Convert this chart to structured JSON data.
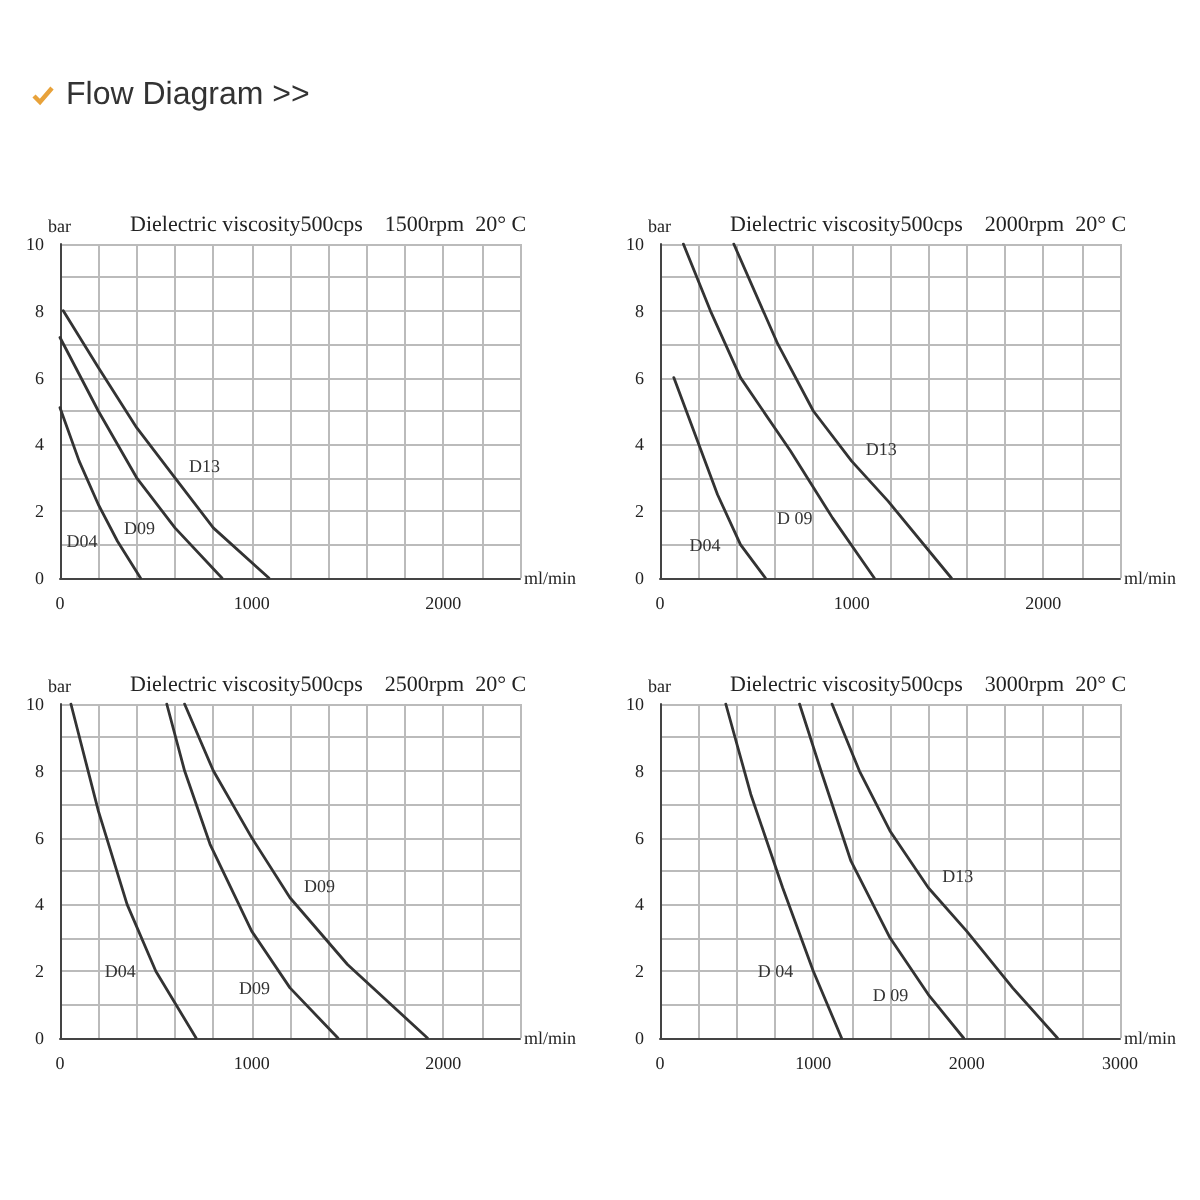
{
  "chart_data": [
    {
      "type": "line",
      "title": "Dielectric viscosity500cps    1500rpm  20° C",
      "xlabel": "ml/min",
      "ylabel": "bar",
      "annotations": [
        "Flow Diagram >>"
      ],
      "grid": true,
      "legend": false,
      "marker": "none",
      "line_style": "solid",
      "xlim": [
        0,
        2400
      ],
      "xticks": [
        0,
        {
          "value": 200,
          "label": null
        },
        {
          "value": 400,
          "label": null
        },
        {
          "value": 600,
          "label": null
        },
        {
          "value": 800,
          "label": null
        },
        1000,
        {
          "value": 1200,
          "label": null
        },
        {
          "value": 1400,
          "label": null
        },
        {
          "value": 1600,
          "label": null
        },
        {
          "value": 1800,
          "label": null
        },
        2000,
        {
          "value": 2200,
          "label": null
        },
        {
          "value": 2400,
          "label": null
        }
      ],
      "ylim": [
        0,
        10
      ],
      "yticks": [
        0,
        {
          "value": 1,
          "label": null
        },
        2,
        {
          "value": 3,
          "label": null
        },
        4,
        {
          "value": 5,
          "label": null
        },
        6,
        {
          "value": 7,
          "label": null
        },
        8,
        {
          "value": 9,
          "label": null
        },
        10
      ],
      "series": [
        {
          "name": "D04",
          "color": "#333333",
          "x": [
            0,
            100,
            200,
            300,
            420
          ],
          "values": [
            5.1,
            3.5,
            2.2,
            1.1,
            0
          ]
        },
        {
          "name": "D09",
          "color": "#333333",
          "x": [
            0,
            200,
            400,
            600,
            845
          ],
          "values": [
            7.2,
            5.0,
            3.0,
            1.5,
            0
          ]
        },
        {
          "name": "D13",
          "color": "#333333",
          "x": [
            17,
            200,
            400,
            600,
            800,
            1090
          ],
          "values": [
            8.0,
            6.3,
            4.5,
            3.0,
            1.5,
            0
          ]
        }
      ]
    },
    {
      "type": "line",
      "title": "Dielectric viscosity500cps    2000rpm  20° C",
      "xlabel": "ml/min",
      "ylabel": "bar",
      "grid": true,
      "legend": false,
      "marker": "none",
      "line_style": "solid",
      "xlim": [
        0,
        2400
      ],
      "xticks": [
        0,
        {
          "value": 200,
          "label": null
        },
        {
          "value": 400,
          "label": null
        },
        {
          "value": 600,
          "label": null
        },
        {
          "value": 800,
          "label": null
        },
        1000,
        {
          "value": 1200,
          "label": null
        },
        {
          "value": 1400,
          "label": null
        },
        {
          "value": 1600,
          "label": null
        },
        {
          "value": 1800,
          "label": null
        },
        2000,
        {
          "value": 2200,
          "label": null
        },
        {
          "value": 2400,
          "label": null
        }
      ],
      "ylim": [
        0,
        10
      ],
      "yticks": [
        0,
        {
          "value": 1,
          "label": null
        },
        2,
        {
          "value": 3,
          "label": null
        },
        4,
        {
          "value": 5,
          "label": null
        },
        6,
        {
          "value": 7,
          "label": null
        },
        8,
        {
          "value": 9,
          "label": null
        },
        10
      ],
      "series": [
        {
          "name": "D04",
          "color": "#333333",
          "x": [
            72,
            170,
            300,
            420,
            550
          ],
          "values": [
            6.0,
            4.5,
            2.5,
            1.0,
            0
          ]
        },
        {
          "name": "D 09",
          "color": "#333333",
          "x": [
            122,
            263,
            420,
            681,
            900,
            1118
          ],
          "values": [
            10,
            8,
            6,
            3.8,
            1.8,
            0
          ]
        },
        {
          "name": "D13",
          "color": "#333333",
          "x": [
            385,
            615,
            800,
            1000,
            1190,
            1520
          ],
          "values": [
            10,
            7,
            5,
            3.5,
            2.3,
            0
          ]
        }
      ]
    },
    {
      "type": "line",
      "title": "Dielectric viscosity500cps    2500rpm  20° C",
      "xlabel": "ml/min",
      "ylabel": "bar",
      "grid": true,
      "legend": false,
      "marker": "none",
      "line_style": "solid",
      "xlim": [
        0,
        2400
      ],
      "xticks": [
        0,
        {
          "value": 200,
          "label": null
        },
        {
          "value": 400,
          "label": null
        },
        {
          "value": 600,
          "label": null
        },
        {
          "value": 800,
          "label": null
        },
        1000,
        {
          "value": 1200,
          "label": null
        },
        {
          "value": 1400,
          "label": null
        },
        {
          "value": 1600,
          "label": null
        },
        {
          "value": 1800,
          "label": null
        },
        2000,
        {
          "value": 2200,
          "label": null
        },
        {
          "value": 2400,
          "label": null
        }
      ],
      "ylim": [
        0,
        10
      ],
      "yticks": [
        0,
        {
          "value": 1,
          "label": null
        },
        2,
        {
          "value": 3,
          "label": null
        },
        4,
        {
          "value": 5,
          "label": null
        },
        6,
        {
          "value": 7,
          "label": null
        },
        8,
        {
          "value": 9,
          "label": null
        },
        10
      ],
      "series": [
        {
          "name": "D04",
          "color": "#333333",
          "x": [
            57,
            200,
            350,
            500,
            710
          ],
          "values": [
            10,
            6.8,
            4,
            2,
            0
          ]
        },
        {
          "name": "D09",
          "color": "#333333",
          "x": [
            557,
            650,
            783,
            1000,
            1200,
            1450
          ],
          "values": [
            10,
            8,
            5.8,
            3.2,
            1.5,
            0
          ]
        },
        {
          "name": "D09",
          "color": "#333333",
          "x": [
            650,
            800,
            1000,
            1200,
            1500,
            1917
          ],
          "values": [
            10,
            8,
            6,
            4.2,
            2.2,
            0
          ]
        }
      ]
    },
    {
      "type": "line",
      "title": "Dielectric viscosity500cps    3000rpm  20° C",
      "xlabel": "ml/min",
      "ylabel": "bar",
      "grid": true,
      "legend": false,
      "marker": "none",
      "line_style": "solid",
      "xlim": [
        0,
        3000
      ],
      "xticks": [
        0,
        {
          "value": 250,
          "label": null
        },
        {
          "value": 500,
          "label": null
        },
        {
          "value": 750,
          "label": null
        },
        1000,
        {
          "value": 1250,
          "label": null
        },
        {
          "value": 1500,
          "label": null
        },
        {
          "value": 1750,
          "label": null
        },
        2000,
        {
          "value": 2250,
          "label": null
        },
        {
          "value": 2500,
          "label": null
        },
        {
          "value": 2750,
          "label": null
        },
        3000
      ],
      "ylim": [
        0,
        10
      ],
      "yticks": [
        0,
        {
          "value": 1,
          "label": null
        },
        2,
        {
          "value": 3,
          "label": null
        },
        4,
        {
          "value": 5,
          "label": null
        },
        6,
        {
          "value": 7,
          "label": null
        },
        8,
        {
          "value": 9,
          "label": null
        },
        10
      ],
      "series": [
        {
          "name": "D 04",
          "color": "#333333",
          "x": [
            429,
            592,
            800,
            1000,
            1184
          ],
          "values": [
            10,
            7.3,
            4.5,
            2,
            0
          ]
        },
        {
          "name": "D 09",
          "color": "#333333",
          "x": [
            910,
            1050,
            1245,
            1500,
            1750,
            1980
          ],
          "values": [
            10,
            8,
            5.3,
            3,
            1.3,
            0
          ]
        },
        {
          "name": "D13",
          "color": "#333333",
          "x": [
            1122,
            1300,
            1500,
            1750,
            2000,
            2300,
            2592
          ],
          "values": [
            10,
            8,
            6.2,
            4.5,
            3.2,
            1.5,
            0
          ]
        }
      ]
    }
  ]
}
